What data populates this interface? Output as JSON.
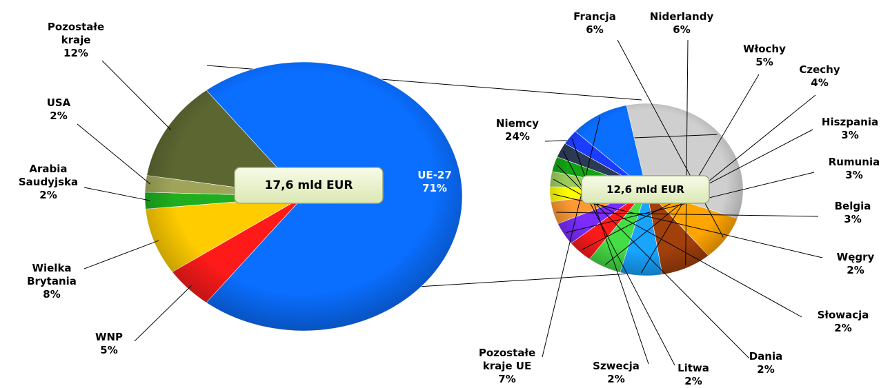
{
  "chart_data": [
    {
      "type": "pie",
      "center_label": "17,6 mld EUR",
      "categories": [
        "UE-27",
        "WNP",
        "Wielka Brytania",
        "Arabia Saudyjska",
        "USA",
        "Pozostałe kraje"
      ],
      "values": [
        71,
        5,
        8,
        2,
        2,
        12
      ],
      "value_labels": [
        "71%",
        "5%",
        "8%",
        "2%",
        "2%",
        "12%"
      ],
      "colors": [
        "#0a6eff",
        "#ff1a1a",
        "#ffcc00",
        "#1fae1f",
        "#9ea55a",
        "#5b6631"
      ]
    },
    {
      "type": "pie",
      "center_label": "12,6 mld EUR",
      "categories": [
        "Niemcy",
        "Francja",
        "Niderlandy",
        "Włochy",
        "Czechy",
        "Hiszpania",
        "Rumunia",
        "Belgia",
        "Węgry",
        "Słowacja",
        "Dania",
        "Litwa",
        "Szwecja",
        "Pozostałe kraje UE"
      ],
      "values": [
        24,
        6,
        6,
        5,
        4,
        3,
        3,
        3,
        2,
        2,
        2,
        2,
        2,
        7
      ],
      "value_labels": [
        "24%",
        "6%",
        "6%",
        "5%",
        "4%",
        "3%",
        "3%",
        "3%",
        "2%",
        "2%",
        "2%",
        "2%",
        "2%",
        "7%"
      ],
      "colors": [
        "#cfcfcf",
        "#ffa400",
        "#a2400c",
        "#18a4ff",
        "#45dd45",
        "#ff1a1a",
        "#7b2cff",
        "#ff9a33",
        "#ffff00",
        "#9dcc5a",
        "#12a312",
        "#2b3a55",
        "#1a3dff",
        "#0a6eff"
      ]
    }
  ]
}
